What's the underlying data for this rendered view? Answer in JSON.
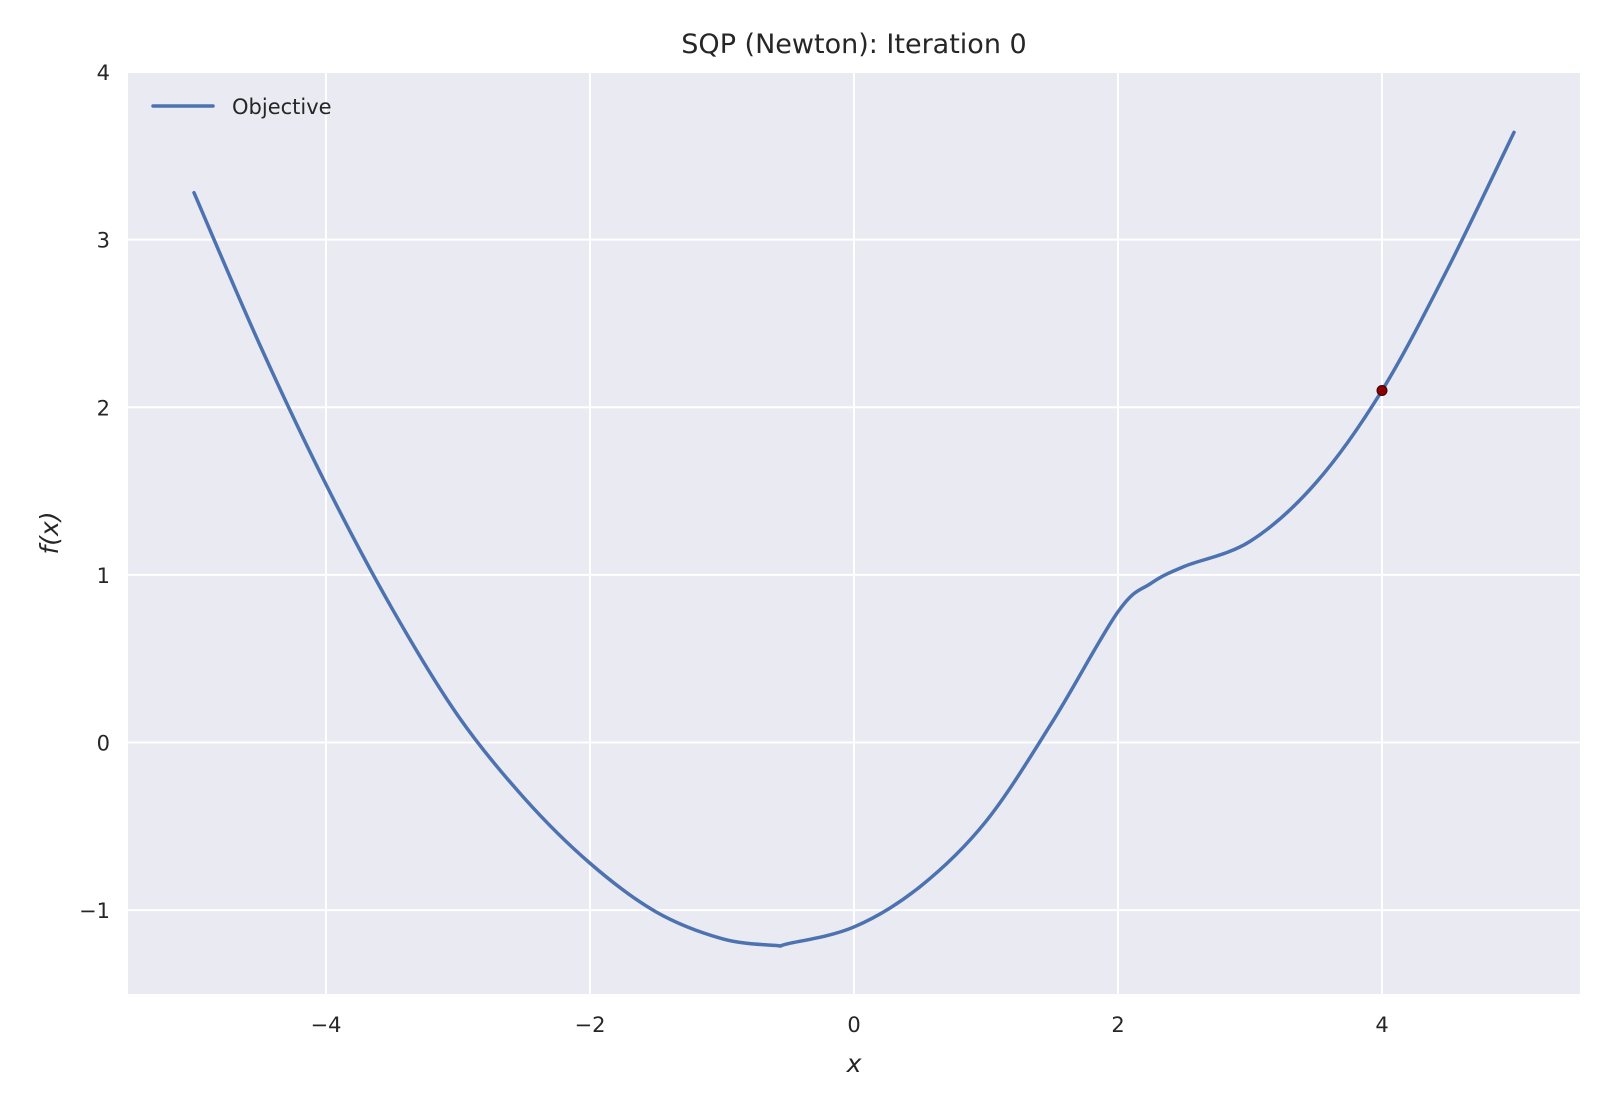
{
  "chart_data": {
    "type": "line",
    "title": "SQP (Newton): Iteration 0",
    "xlabel": "x",
    "ylabel": "f(x)",
    "xlim": [
      -5.5,
      5.5
    ],
    "ylim": [
      -1.5,
      4.0
    ],
    "xticks": [
      -4,
      -2,
      0,
      2,
      4
    ],
    "yticks": [
      -1,
      0,
      1,
      2,
      3,
      4
    ],
    "xtick_labels": [
      "−4",
      "−2",
      "0",
      "2",
      "4"
    ],
    "ytick_labels": [
      "−1",
      "0",
      "1",
      "2",
      "3",
      "4"
    ],
    "grid": true,
    "legend": {
      "placement": "top-left",
      "entries": [
        "Objective"
      ]
    },
    "colors": {
      "series": "#4c72b0",
      "marker": "#8b0000",
      "background": "#eaeaf2",
      "grid": "#ffffff"
    },
    "series": [
      {
        "name": "Objective",
        "x": [
          -5.0,
          -4.5,
          -4.0,
          -3.5,
          -3.0,
          -2.5,
          -2.0,
          -1.5,
          -1.0,
          -0.6,
          -0.5,
          0.0,
          0.5,
          1.0,
          1.5,
          2.0,
          2.25,
          2.5,
          3.0,
          3.5,
          4.0,
          4.5,
          5.0
        ],
        "y": [
          3.28,
          2.37,
          1.54,
          0.8,
          0.16,
          -0.33,
          -0.72,
          -1.01,
          -1.17,
          -1.21,
          -1.2,
          -1.1,
          -0.86,
          -0.47,
          0.12,
          0.78,
          0.95,
          1.05,
          1.2,
          1.55,
          2.1,
          2.83,
          3.64
        ]
      }
    ],
    "current_point": {
      "x": 4.0,
      "y": 2.1
    }
  }
}
